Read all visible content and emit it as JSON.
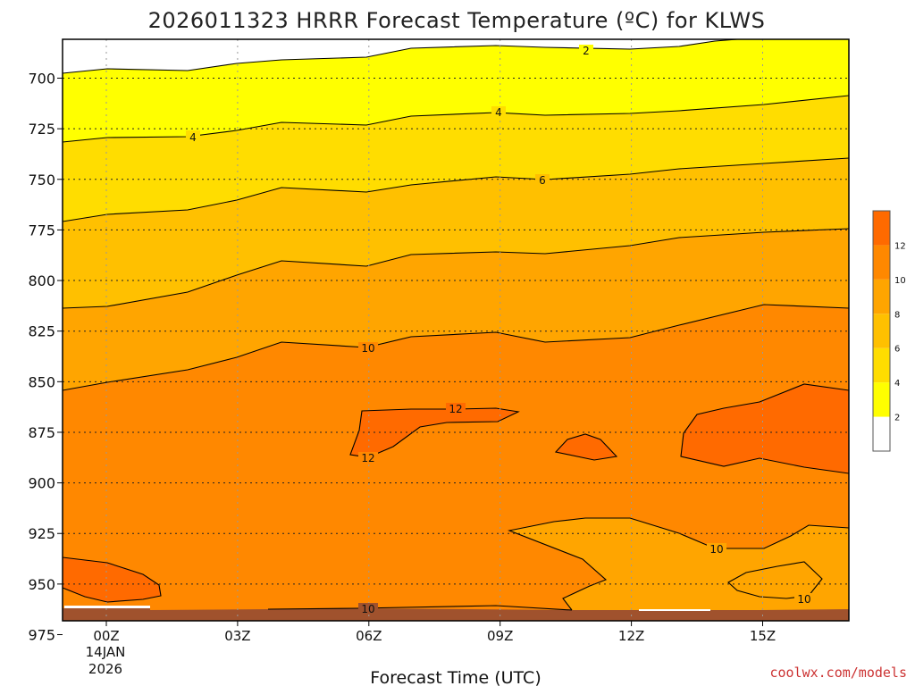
{
  "chart_data": {
    "type": "contour",
    "title": "2026011323 HRRR Forecast Temperature (ºC) for KLWS",
    "xlabel": "Forecast Time (UTC)",
    "ylabel": "",
    "x_ticks": [
      "00Z",
      "03Z",
      "06Z",
      "09Z",
      "12Z",
      "15Z"
    ],
    "x_date_label": [
      "14JAN",
      "2026"
    ],
    "y_ticks": [
      700,
      725,
      750,
      775,
      800,
      825,
      850,
      875,
      900,
      925,
      950,
      975
    ],
    "y_axis": "pressure (inverted)",
    "contour_levels": [
      2,
      4,
      6,
      8,
      10,
      12
    ],
    "contour_line_labels": [
      "2",
      "4",
      "6",
      "10",
      "12",
      "12",
      "10",
      "10"
    ],
    "grid": true,
    "colorbar": {
      "ticks": [
        "2",
        "4",
        "6",
        "8",
        "10",
        "12"
      ],
      "colors": [
        "#ffffff",
        "#ffff00",
        "#ffdd00",
        "#ffc000",
        "#ffa500",
        "#ff8800",
        "#ff6a00"
      ]
    },
    "ground_color": "#a0522d"
  },
  "credit": "coolwx.com/models"
}
